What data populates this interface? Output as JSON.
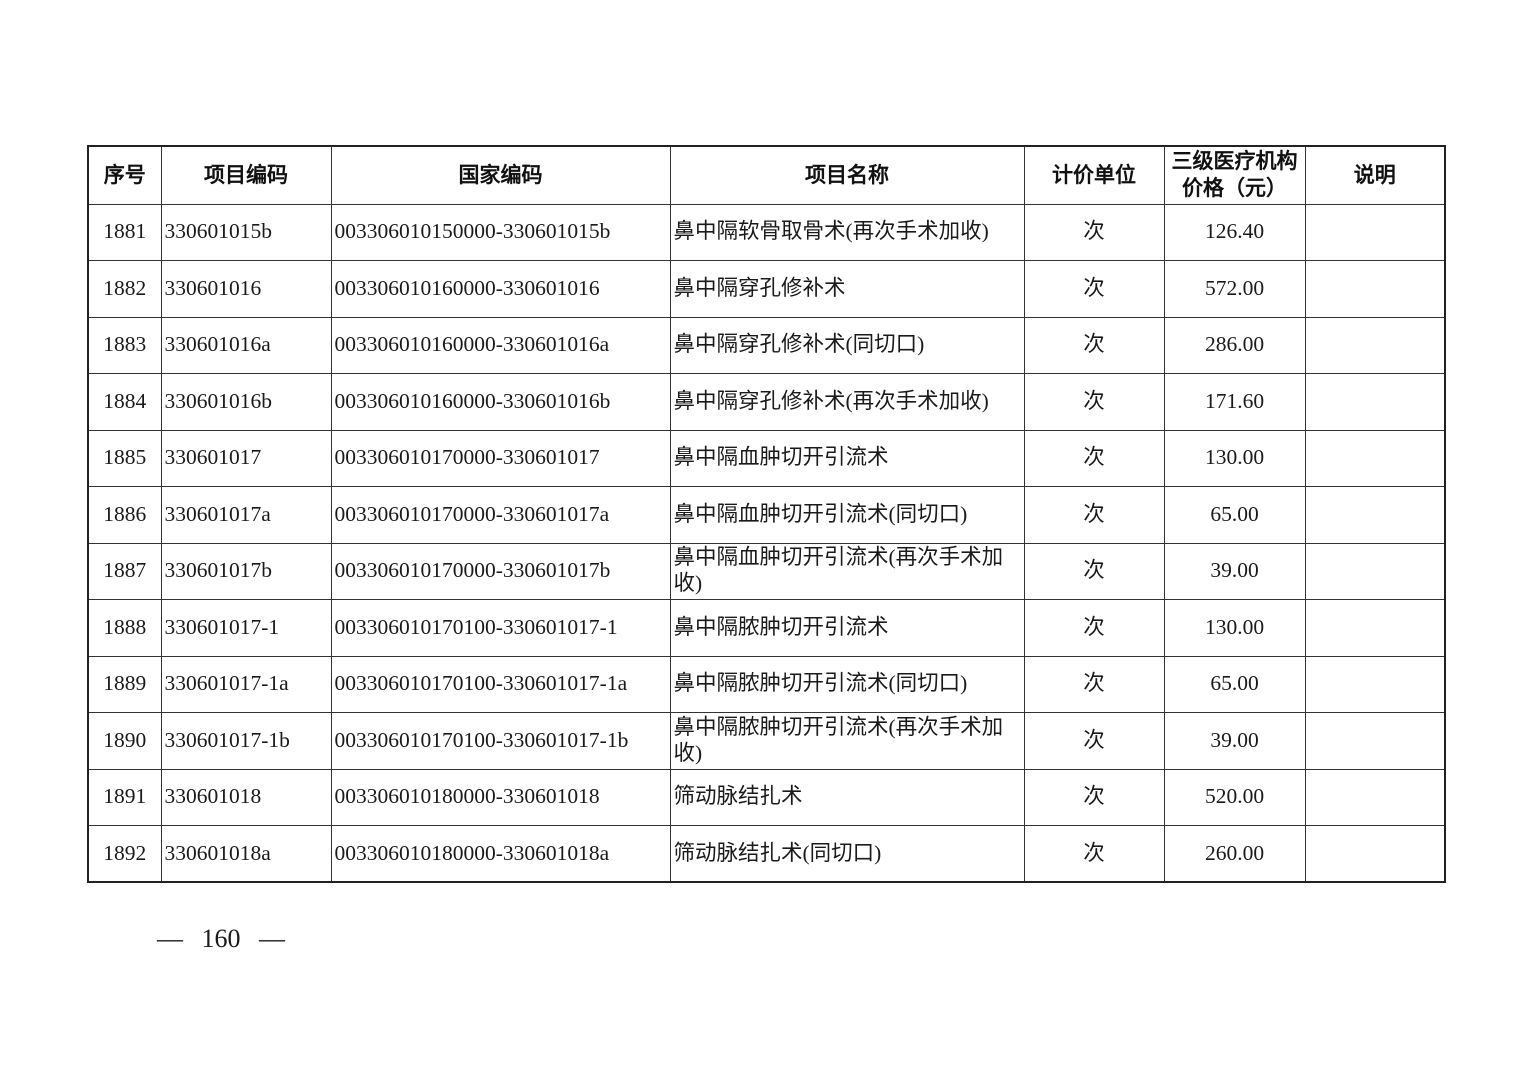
{
  "table": {
    "headers": [
      "序号",
      "项目编码",
      "国家编码",
      "项目名称",
      "计价单位",
      "三级医疗机构\n价格（元）",
      "说明"
    ],
    "rows": [
      {
        "no": "1881",
        "code": "330601015b",
        "national_code": "003306010150000-330601015b",
        "name": "鼻中隔软骨取骨术(再次手术加收)",
        "unit": "次",
        "price": "126.40",
        "note": ""
      },
      {
        "no": "1882",
        "code": "330601016",
        "national_code": "003306010160000-330601016",
        "name": "鼻中隔穿孔修补术",
        "unit": "次",
        "price": "572.00",
        "note": ""
      },
      {
        "no": "1883",
        "code": "330601016a",
        "national_code": "003306010160000-330601016a",
        "name": "鼻中隔穿孔修补术(同切口)",
        "unit": "次",
        "price": "286.00",
        "note": ""
      },
      {
        "no": "1884",
        "code": "330601016b",
        "national_code": "003306010160000-330601016b",
        "name": "鼻中隔穿孔修补术(再次手术加收)",
        "unit": "次",
        "price": "171.60",
        "note": ""
      },
      {
        "no": "1885",
        "code": "330601017",
        "national_code": "003306010170000-330601017",
        "name": "鼻中隔血肿切开引流术",
        "unit": "次",
        "price": "130.00",
        "note": ""
      },
      {
        "no": "1886",
        "code": "330601017a",
        "national_code": "003306010170000-330601017a",
        "name": "鼻中隔血肿切开引流术(同切口)",
        "unit": "次",
        "price": "65.00",
        "note": ""
      },
      {
        "no": "1887",
        "code": "330601017b",
        "national_code": "003306010170000-330601017b",
        "name": "鼻中隔血肿切开引流术(再次手术加收)",
        "unit": "次",
        "price": "39.00",
        "note": ""
      },
      {
        "no": "1888",
        "code": "330601017-1",
        "national_code": "003306010170100-330601017-1",
        "name": "鼻中隔脓肿切开引流术",
        "unit": "次",
        "price": "130.00",
        "note": ""
      },
      {
        "no": "1889",
        "code": "330601017-1a",
        "national_code": "003306010170100-330601017-1a",
        "name": "鼻中隔脓肿切开引流术(同切口)",
        "unit": "次",
        "price": "65.00",
        "note": ""
      },
      {
        "no": "1890",
        "code": "330601017-1b",
        "national_code": "003306010170100-330601017-1b",
        "name": "鼻中隔脓肿切开引流术(再次手术加收)",
        "unit": "次",
        "price": "39.00",
        "note": ""
      },
      {
        "no": "1891",
        "code": "330601018",
        "national_code": "003306010180000-330601018",
        "name": "筛动脉结扎术",
        "unit": "次",
        "price": "520.00",
        "note": ""
      },
      {
        "no": "1892",
        "code": "330601018a",
        "national_code": "003306010180000-330601018a",
        "name": "筛动脉结扎术(同切口)",
        "unit": "次",
        "price": "260.00",
        "note": ""
      }
    ]
  },
  "footer": {
    "page_number": "— 160 —"
  }
}
